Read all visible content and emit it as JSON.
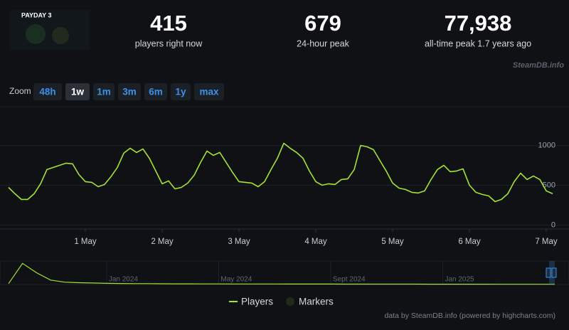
{
  "header": {
    "game_logo": "PAYDAY 3",
    "stats": [
      {
        "value": "415",
        "label": "players right now"
      },
      {
        "value": "679",
        "label": "24-hour peak"
      },
      {
        "value": "77,938",
        "label": "all-time peak 1.7 years ago"
      }
    ],
    "watermark": "SteamDB.info"
  },
  "zoom": {
    "label": "Zoom",
    "buttons": [
      "48h",
      "1w",
      "1m",
      "3m",
      "6m",
      "1y",
      "max"
    ],
    "active": 1
  },
  "chart_data": {
    "type": "line",
    "categories": [
      null,
      null,
      null,
      null,
      null,
      null,
      null,
      null,
      null,
      null,
      null,
      null,
      "1 May",
      null,
      null,
      null,
      null,
      null,
      null,
      null,
      null,
      null,
      null,
      null,
      "2 May",
      null,
      null,
      null,
      null,
      null,
      null,
      null,
      null,
      null,
      null,
      null,
      "3 May",
      null,
      null,
      null,
      null,
      null,
      null,
      null,
      null,
      null,
      null,
      null,
      "4 May",
      null,
      null,
      null,
      null,
      null,
      null,
      null,
      null,
      null,
      null,
      null,
      "5 May",
      null,
      null,
      null,
      null,
      null,
      null,
      null,
      null,
      null,
      null,
      null,
      "6 May",
      null,
      null,
      null,
      null,
      null,
      null,
      null,
      null,
      null,
      null,
      null,
      "7 May",
      null
    ],
    "series": [
      {
        "name": "Players",
        "color": "#a4e234",
        "values": [
          474,
          394,
          322,
          322,
          394,
          519,
          698,
          725,
          752,
          779,
          770,
          635,
          546,
          537,
          483,
          510,
          609,
          725,
          904,
          967,
          913,
          958,
          841,
          680,
          519,
          555,
          456,
          474,
          528,
          627,
          788,
          931,
          877,
          913,
          788,
          662,
          546,
          537,
          528,
          483,
          546,
          698,
          841,
          1029,
          967,
          913,
          841,
          680,
          546,
          501,
          519,
          510,
          573,
          582,
          698,
          1002,
          985,
          949,
          814,
          680,
          528,
          465,
          448,
          412,
          403,
          430,
          573,
          698,
          752,
          671,
          680,
          707,
          501,
          412,
          385,
          367,
          295,
          322,
          394,
          546,
          653,
          573,
          618,
          573,
          430,
          394
        ]
      }
    ],
    "markers": {
      "name": "Markers",
      "color": "#1f2a17"
    },
    "ylim": [
      -50,
      1400
    ],
    "yticks": [
      0,
      500,
      1000
    ],
    "grid": true
  },
  "navigator": {
    "categories": [
      null,
      null,
      null,
      null,
      null,
      null,
      null,
      "Jan 2024",
      null,
      null,
      null,
      null,
      null,
      null,
      null,
      "May 2024",
      null,
      null,
      null,
      null,
      null,
      null,
      null,
      "Sept 2024",
      null,
      null,
      null,
      null,
      null,
      null,
      null,
      "Jan 2025",
      null,
      null,
      null,
      null,
      null,
      null,
      null,
      null
    ],
    "values": [
      3000,
      72000,
      40000,
      15000,
      8000,
      6000,
      5000,
      4000,
      3500,
      3000,
      2800,
      2500,
      2300,
      2200,
      2000,
      1900,
      1800,
      1800,
      1700,
      1600,
      1500,
      1500,
      1400,
      1400,
      1300,
      1300,
      1200,
      1200,
      1100,
      1100,
      1000,
      1000,
      900,
      900,
      900,
      800,
      800,
      700,
      700,
      700
    ],
    "ylim": [
      0,
      80000
    ],
    "color": "#a4e234"
  },
  "credit": "data by SteamDB.info (powered by highcharts.com)"
}
